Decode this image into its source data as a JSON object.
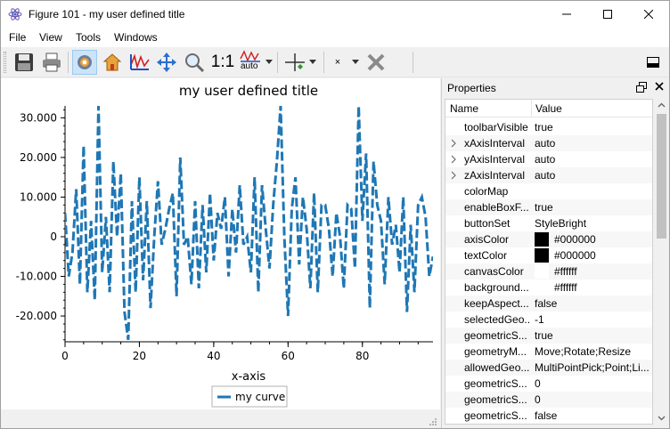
{
  "window": {
    "title": "Figure 101 - my user defined title"
  },
  "menu": [
    "File",
    "View",
    "Tools",
    "Windows"
  ],
  "toolbar": {
    "ratio_label": "1:1",
    "auto_label": "auto",
    "marker_label": "×"
  },
  "plot": {
    "title": "my user defined title",
    "xlabel": "x-axis",
    "legend_entry": "my curve",
    "line_color": "#1f77b4"
  },
  "chart_data": {
    "type": "line",
    "title": "my user defined title",
    "xlabel": "x-axis",
    "ylabel": "",
    "xlim": [
      0,
      99
    ],
    "ylim": [
      -26500,
      33000
    ],
    "x_ticks": [
      "0",
      "20",
      "40",
      "60",
      "80"
    ],
    "y_ticks": [
      "30.000",
      "20.000",
      "10.000",
      "0",
      "-10.000",
      "-20.000"
    ],
    "x_tick_values": [
      0,
      20,
      40,
      60,
      80
    ],
    "y_tick_values": [
      30000,
      20000,
      10000,
      0,
      -10000,
      -20000
    ],
    "legend_position": "bottom-center",
    "series": [
      {
        "name": "my curve",
        "values": [
          6000,
          -10000,
          -4000,
          12000,
          -12000,
          23000,
          -14000,
          4000,
          -16000,
          33000,
          -9000,
          5000,
          -14000,
          19000,
          0,
          16000,
          -19000,
          -26000,
          9000,
          -14000,
          15000,
          -11000,
          9000,
          -18000,
          0,
          14000,
          -2000,
          2000,
          7000,
          11000,
          -15000,
          20000,
          -2000,
          0,
          -12000,
          9000,
          -13000,
          8000,
          -9000,
          11000,
          -6000,
          6000,
          2000,
          10000,
          -10000,
          7000,
          -4000,
          13000,
          -2000,
          0,
          -9000,
          15000,
          -14000,
          13000,
          2000,
          -8000,
          8000,
          19000,
          33000,
          0,
          -20000,
          7000,
          15000,
          -7000,
          10000,
          2000,
          -13000,
          11000,
          -14000,
          8000,
          8000,
          2000,
          -10000,
          6000,
          0,
          -13000,
          8000,
          7000,
          -8000,
          33000,
          4000,
          21000,
          -18000,
          19000,
          8000,
          4000,
          -12000,
          10000,
          -2000,
          3000,
          -9000,
          10000,
          -19000,
          3000,
          -14000,
          8000,
          10000,
          5000,
          -10000,
          -5000
        ]
      }
    ]
  },
  "properties": {
    "dock_title": "Properties",
    "col_name": "Name",
    "col_value": "Value",
    "rows": [
      {
        "name": "toolbarVisible",
        "value": "true",
        "expandable": false,
        "swatch": null
      },
      {
        "name": "xAxisInterval",
        "value": "auto",
        "expandable": true,
        "swatch": null
      },
      {
        "name": "yAxisInterval",
        "value": "auto",
        "expandable": true,
        "swatch": null
      },
      {
        "name": "zAxisInterval",
        "value": "auto",
        "expandable": true,
        "swatch": null
      },
      {
        "name": "colorMap",
        "value": "",
        "expandable": false,
        "swatch": null
      },
      {
        "name": "enableBoxF...",
        "value": "true",
        "expandable": false,
        "swatch": null
      },
      {
        "name": "buttonSet",
        "value": "StyleBright",
        "expandable": false,
        "swatch": null
      },
      {
        "name": "axisColor",
        "value": "#000000",
        "expandable": false,
        "swatch": "#000000"
      },
      {
        "name": "textColor",
        "value": "#000000",
        "expandable": false,
        "swatch": "#000000"
      },
      {
        "name": "canvasColor",
        "value": "#ffffff",
        "expandable": false,
        "swatch": "#ffffff"
      },
      {
        "name": "background...",
        "value": "#ffffff",
        "expandable": false,
        "swatch": "#ffffff"
      },
      {
        "name": "keepAspect...",
        "value": "false",
        "expandable": false,
        "swatch": null
      },
      {
        "name": "selectedGeo...",
        "value": "-1",
        "expandable": false,
        "swatch": null
      },
      {
        "name": "geometricS...",
        "value": "true",
        "expandable": false,
        "swatch": null
      },
      {
        "name": "geometryM...",
        "value": "Move;Rotate;Resize",
        "expandable": false,
        "swatch": null
      },
      {
        "name": "allowedGeo...",
        "value": "MultiPointPick;Point;Li...",
        "expandable": false,
        "swatch": null
      },
      {
        "name": "geometricS...",
        "value": "0",
        "expandable": false,
        "swatch": null
      },
      {
        "name": "geometricS...",
        "value": "0",
        "expandable": false,
        "swatch": null
      },
      {
        "name": "geometricS...",
        "value": "false",
        "expandable": false,
        "swatch": null
      }
    ]
  }
}
